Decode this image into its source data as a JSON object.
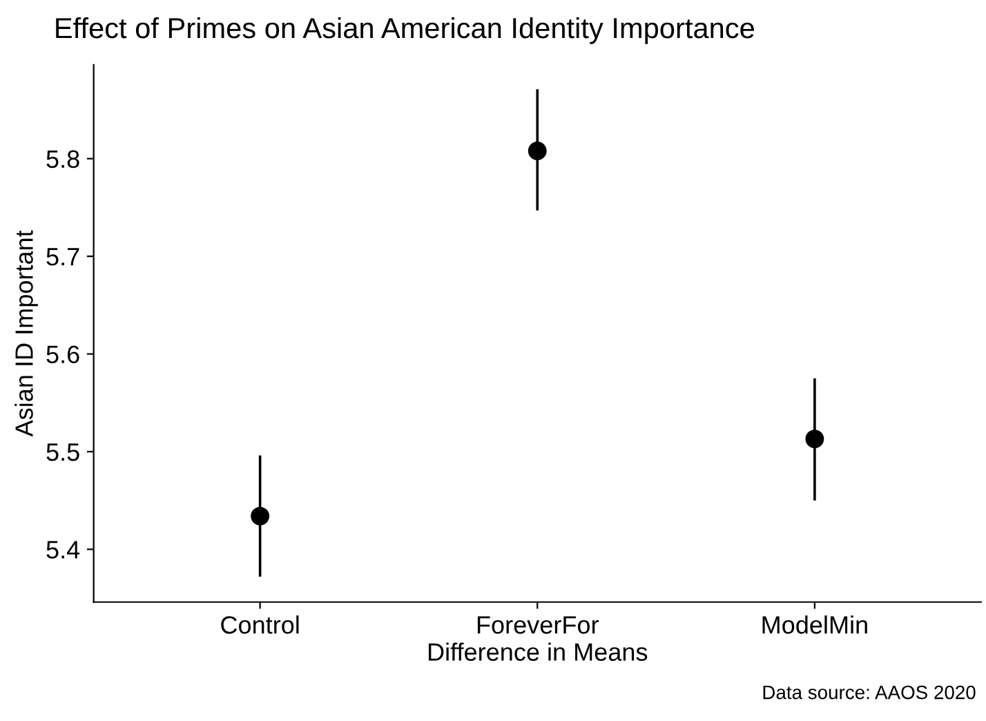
{
  "chart_data": {
    "type": "scatter",
    "title": "Effect of Primes on Asian American Identity Importance",
    "xlabel": "Difference in Means",
    "ylabel": "Asian ID Important",
    "categories": [
      "Control",
      "ForeverFor",
      "ModelMin"
    ],
    "values": [
      5.434,
      5.808,
      5.513
    ],
    "errors": [
      [
        5.372,
        5.496
      ],
      [
        5.747,
        5.871
      ],
      [
        5.45,
        5.575
      ]
    ],
    "color": "#000000",
    "marker": "circle",
    "ylim": [
      5.346,
      5.896
    ],
    "yticks": [
      5.4,
      5.5,
      5.6,
      5.7,
      5.8
    ],
    "grid": false,
    "annotations": [
      "Data source: AAOS 2020"
    ]
  }
}
